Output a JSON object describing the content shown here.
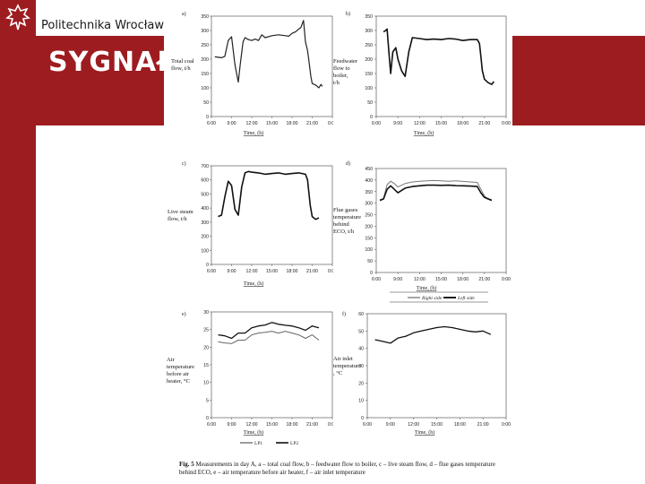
{
  "header": {
    "university": "Politechnika Wrocławsk",
    "title": "SYGNAŁ",
    "colors": {
      "brand": "#9d1c20",
      "text_light": "#ffffff"
    },
    "logo_icon": "eagle-crest-icon"
  },
  "caption": {
    "label": "Fig. 5",
    "text": "Measurements in day A, a – total coal flow, b – feedwater flow to boiler, c – live steam flow, d – flue gases temperature behind ECO, e – air temperature before air heater, f – air inlet temperature"
  },
  "chart_data": [
    {
      "id": "a",
      "type": "line",
      "panel_label": "a)",
      "xlabel": "Time, (h)",
      "ylabel": "Total coal flow, t/h",
      "xticks": [
        "6:00",
        "9:00",
        "12:00",
        "15:00",
        "18:00",
        "21:00",
        "0:00"
      ],
      "xlim": [
        6,
        24
      ],
      "ylim": [
        0,
        350
      ],
      "yticks": [
        0,
        50,
        100,
        150,
        200,
        250,
        300,
        350
      ],
      "grid": false,
      "series": [
        {
          "x": [
            6.5,
            7.5,
            8.0,
            8.5,
            9.0,
            9.5,
            10.0,
            10.3,
            10.7,
            11.0,
            11.5,
            12.0,
            12.5,
            13.0,
            13.5,
            14.0,
            15.0,
            16.0,
            17.0,
            17.5,
            18.0,
            18.5,
            19.0,
            19.3,
            19.7,
            20.0,
            20.3,
            20.5,
            20.8,
            21.0,
            21.5,
            22.0,
            22.3,
            22.5
          ],
          "y": [
            208,
            205,
            210,
            265,
            278,
            180,
            120,
            185,
            260,
            275,
            268,
            265,
            270,
            265,
            285,
            275,
            282,
            285,
            282,
            280,
            290,
            295,
            305,
            310,
            335,
            260,
            230,
            195,
            140,
            115,
            110,
            100,
            112,
            105
          ],
          "color": "#222222",
          "stroke": 1.2
        }
      ]
    },
    {
      "id": "b",
      "type": "line",
      "panel_label": "b)",
      "xlabel": "Time, (h)",
      "ylabel": "Feedwater flow to boiler, t/h",
      "xticks": [
        "6:00",
        "9:00",
        "12:00",
        "15:00",
        "18:00",
        "21:00",
        "0:00"
      ],
      "xlim": [
        6,
        24
      ],
      "ylim": [
        0,
        350
      ],
      "yticks": [
        0,
        50,
        100,
        150,
        200,
        250,
        300,
        350
      ],
      "grid": false,
      "series": [
        {
          "x": [
            7.0,
            7.3,
            7.5,
            7.8,
            8.0,
            8.3,
            8.7,
            9.0,
            9.5,
            10.0,
            10.5,
            11.0,
            12.0,
            13.0,
            14.0,
            15.0,
            16.0,
            17.0,
            18.0,
            19.0,
            20.0,
            20.3,
            20.5,
            20.7,
            21.0,
            21.5,
            22.0,
            22.3
          ],
          "y": [
            295,
            300,
            305,
            210,
            150,
            225,
            240,
            200,
            160,
            140,
            225,
            275,
            272,
            268,
            270,
            268,
            272,
            270,
            265,
            268,
            268,
            255,
            210,
            160,
            130,
            118,
            112,
            122
          ],
          "color": "#111111",
          "stroke": 1.6
        }
      ]
    },
    {
      "id": "c",
      "type": "line",
      "panel_label": "c)",
      "xlabel": "Time, (h)",
      "ylabel": "Live steam flow, t/h",
      "xticks": [
        "6:00",
        "9:00",
        "12:00",
        "15:00",
        "18:00",
        "21:00",
        "0:00"
      ],
      "xlim": [
        6,
        24
      ],
      "ylim": [
        0,
        700
      ],
      "yticks": [
        0,
        100,
        200,
        300,
        400,
        500,
        600,
        700
      ],
      "grid": false,
      "series": [
        {
          "x": [
            7.0,
            7.5,
            8.0,
            8.5,
            9.0,
            9.5,
            10.0,
            10.5,
            11.0,
            11.5,
            12.0,
            13.0,
            14.0,
            15.0,
            16.0,
            17.0,
            18.0,
            19.0,
            20.0,
            20.3,
            20.7,
            21.0,
            21.5,
            22.0
          ],
          "y": [
            340,
            350,
            480,
            590,
            560,
            390,
            350,
            550,
            650,
            660,
            655,
            650,
            640,
            645,
            650,
            640,
            645,
            650,
            640,
            600,
            420,
            340,
            320,
            330
          ],
          "color": "#111111",
          "stroke": 1.6
        }
      ]
    },
    {
      "id": "d",
      "type": "line",
      "panel_label": "d)",
      "xlabel": "Time, (h)",
      "ylabel": "Flue gases temperature behind ECO, t/h",
      "xticks": [
        "6:00",
        "9:00",
        "12:00",
        "15:00",
        "18:00",
        "21:00",
        "0:00"
      ],
      "xlim": [
        6,
        24
      ],
      "ylim": [
        0,
        450
      ],
      "yticks": [
        0,
        50,
        100,
        150,
        200,
        250,
        300,
        350,
        400,
        450
      ],
      "grid": false,
      "legend": [
        "Right side",
        "Left side"
      ],
      "legend_position": "bottom",
      "series": [
        {
          "name": "Right side",
          "x": [
            6.5,
            7.0,
            7.5,
            8.0,
            8.5,
            9.0,
            10.0,
            11.0,
            12.0,
            13.0,
            14.0,
            15.0,
            16.0,
            17.0,
            18.0,
            19.0,
            20.0,
            20.5,
            21.0,
            21.5,
            22.0
          ],
          "y": [
            315,
            320,
            380,
            395,
            385,
            370,
            385,
            392,
            395,
            397,
            398,
            397,
            395,
            397,
            394,
            392,
            390,
            360,
            330,
            320,
            315
          ],
          "color": "#777777",
          "stroke": 1.0
        },
        {
          "name": "Left side",
          "x": [
            6.5,
            7.0,
            7.5,
            8.0,
            8.5,
            9.0,
            10.0,
            11.0,
            12.0,
            13.0,
            14.0,
            15.0,
            16.0,
            17.0,
            18.0,
            19.0,
            20.0,
            20.5,
            21.0,
            21.5,
            22.0
          ],
          "y": [
            312,
            318,
            360,
            375,
            360,
            345,
            365,
            372,
            375,
            378,
            378,
            377,
            378,
            376,
            375,
            374,
            372,
            345,
            325,
            318,
            312
          ],
          "color": "#111111",
          "stroke": 1.6
        }
      ]
    },
    {
      "id": "e",
      "type": "line",
      "panel_label": "e)",
      "xlabel": "Time, (h)",
      "ylabel": "Air temperature before air heater, °C",
      "xticks": [
        "6:00",
        "9:00",
        "12:00",
        "15:00",
        "18:00",
        "21:00",
        "0:00"
      ],
      "xlim": [
        6,
        24
      ],
      "ylim": [
        0,
        30
      ],
      "yticks": [
        0,
        5,
        10,
        15,
        20,
        25,
        30
      ],
      "grid": false,
      "legend": [
        "LP1",
        "LP2"
      ],
      "legend_position": "bottom",
      "series": [
        {
          "name": "LP1",
          "x": [
            7,
            8,
            9,
            10,
            11,
            12,
            13,
            14,
            15,
            16,
            17,
            18,
            19,
            20,
            21,
            22
          ],
          "y": [
            21.5,
            21.2,
            21.0,
            22.0,
            22.0,
            23.5,
            24.0,
            24.2,
            24.5,
            24.0,
            24.5,
            24.0,
            23.5,
            22.5,
            23.5,
            22.0
          ],
          "color": "#666666",
          "stroke": 1.0
        },
        {
          "name": "LP2",
          "x": [
            7,
            8,
            9,
            10,
            11,
            12,
            13,
            14,
            15,
            16,
            17,
            18,
            19,
            20,
            21,
            22
          ],
          "y": [
            23.5,
            23.2,
            22.5,
            24.0,
            24.0,
            25.5,
            26.0,
            26.3,
            27.0,
            26.5,
            26.2,
            26.0,
            25.5,
            24.8,
            26.0,
            25.5
          ],
          "color": "#111111",
          "stroke": 1.3
        }
      ]
    },
    {
      "id": "f",
      "type": "line",
      "panel_label": "f)",
      "xlabel": "Time, (h)",
      "ylabel": "Air inlet temperature , °C",
      "xticks": [
        "6:00",
        "9:00",
        "12:00",
        "15:00",
        "18:00",
        "21:00",
        "0:00"
      ],
      "xlim": [
        6,
        24
      ],
      "ylim": [
        0,
        60
      ],
      "yticks": [
        0,
        10,
        20,
        30,
        40,
        50,
        60
      ],
      "grid": false,
      "series": [
        {
          "x": [
            7,
            8,
            9,
            10,
            11,
            12,
            13,
            14,
            15,
            16,
            17,
            18,
            19,
            20,
            21,
            22
          ],
          "y": [
            45,
            44,
            43,
            46,
            47,
            49,
            50,
            51,
            52,
            52.5,
            52,
            51,
            50,
            49.5,
            50,
            48
          ],
          "color": "#111111",
          "stroke": 1.3
        }
      ]
    }
  ]
}
